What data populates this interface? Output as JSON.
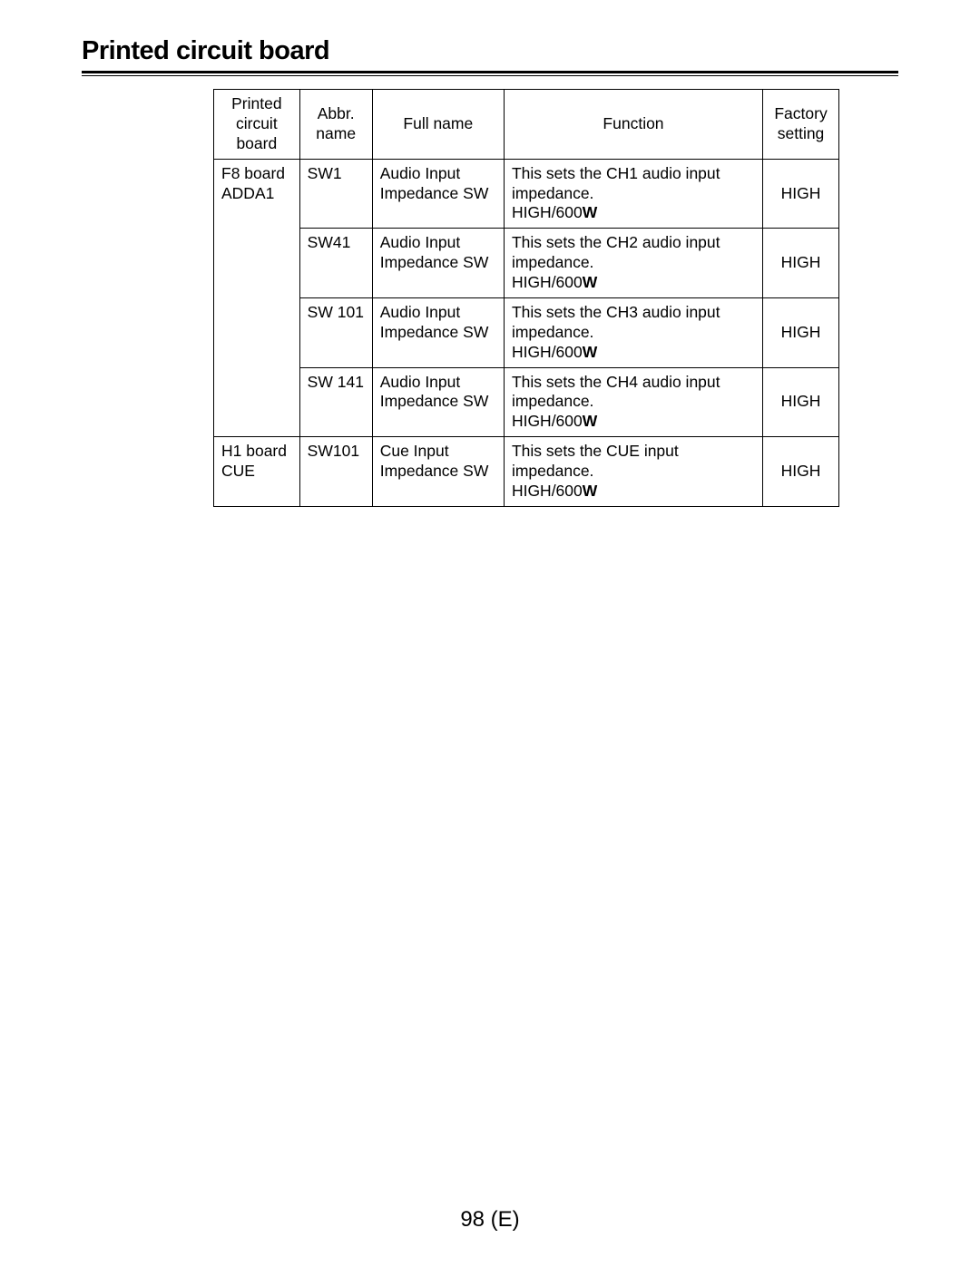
{
  "title": "Printed circuit board",
  "columns": {
    "pcb_l1": "Printed",
    "pcb_l2": "circuit",
    "pcb_l3": "board",
    "abbr_l1": "Abbr.",
    "abbr_l2": "name",
    "fullname": "Full name",
    "function": "Function",
    "setting_l1": "Factory",
    "setting_l2": "setting"
  },
  "rows": [
    {
      "pcb_l1": "F8 board",
      "pcb_l2": "ADDA1",
      "pcb_merge_below": true,
      "abbr": "SW1",
      "full_l1": "Audio Input",
      "full_l2": "Impedance SW",
      "func_l1": "This sets the CH1 audio input",
      "func_l2": "impedance.",
      "func_l3_normal": "HIGH/600",
      "func_l3_bold": "W",
      "setting": "HIGH"
    },
    {
      "pcb_l1": "",
      "pcb_l2": "",
      "pcb_continue": true,
      "abbr": "SW41",
      "full_l1": "Audio Input",
      "full_l2": "Impedance SW",
      "func_l1": "This sets the CH2 audio input",
      "func_l2": "impedance.",
      "func_l3_normal": "HIGH/600",
      "func_l3_bold": "W",
      "setting": "HIGH"
    },
    {
      "pcb_l1": "",
      "pcb_l2": "",
      "pcb_continue": true,
      "abbr": "SW 101",
      "full_l1": "Audio Input",
      "full_l2": "Impedance SW",
      "func_l1": "This sets the CH3 audio input",
      "func_l2": "impedance.",
      "func_l3_normal": "HIGH/600",
      "func_l3_bold": "W",
      "setting": "HIGH"
    },
    {
      "pcb_l1": "",
      "pcb_l2": "",
      "pcb_continue": true,
      "abbr": "SW 141",
      "full_l1": "Audio Input",
      "full_l2": "Impedance SW",
      "func_l1": "This sets the CH4 audio input",
      "func_l2": "impedance.",
      "func_l3_normal": "HIGH/600",
      "func_l3_bold": "W",
      "setting": "HIGH"
    },
    {
      "pcb_l1": "H1 board",
      "pcb_l2": "CUE",
      "abbr": "SW101",
      "full_l1": "Cue Input",
      "full_l2": "Impedance SW",
      "func_l1": "This sets the CUE input impedance.",
      "func_l2": "",
      "func_l3_normal": "HIGH/600",
      "func_l3_bold": "W",
      "setting": "HIGH"
    }
  ],
  "page_number": "98 (E)"
}
